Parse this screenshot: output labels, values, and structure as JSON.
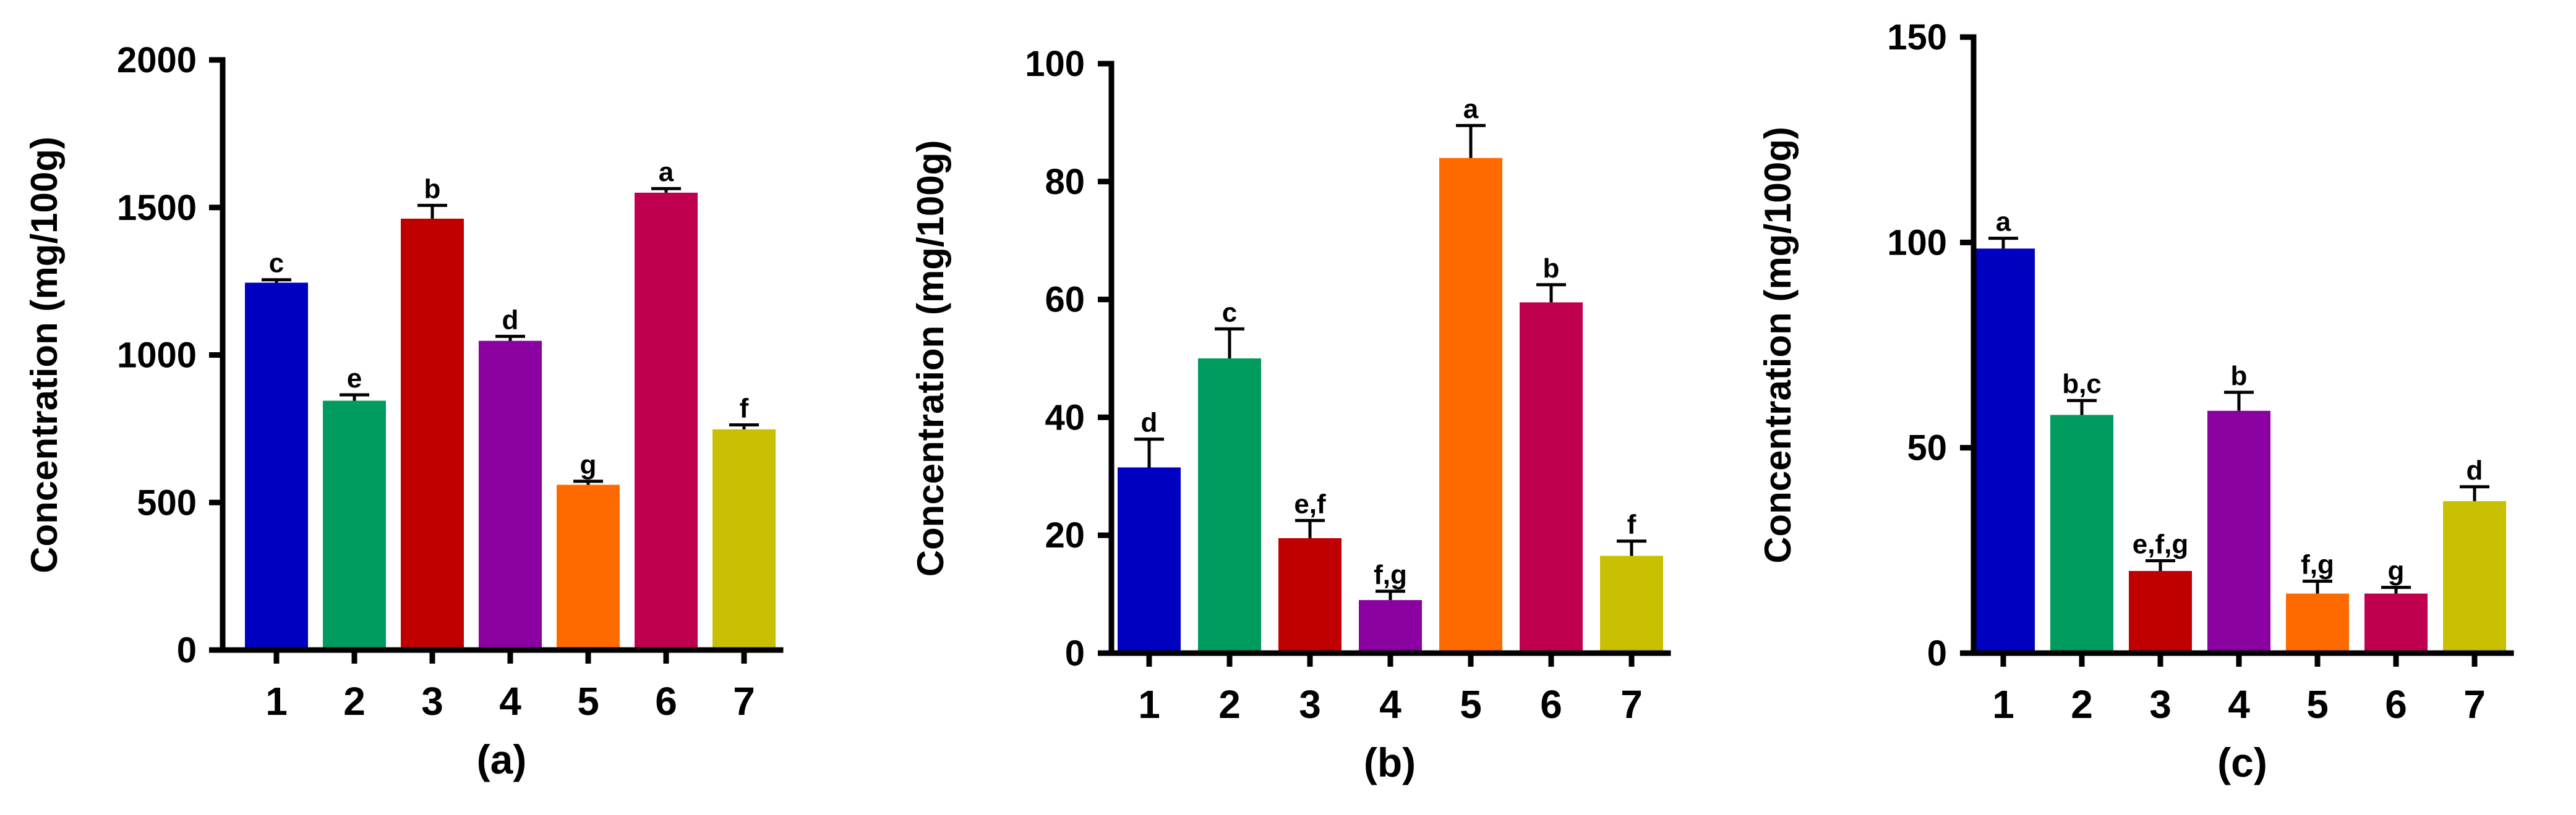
{
  "chart_data": [
    {
      "type": "bar",
      "panel_label": "(a)",
      "ylabel": "Concentration (mg/100g)",
      "ylim": [
        0,
        2000
      ],
      "yticks": [
        0,
        500,
        1000,
        1500,
        2000
      ],
      "categories": [
        "1",
        "2",
        "3",
        "4",
        "5",
        "6",
        "7"
      ],
      "values": [
        1245,
        845,
        1462,
        1048,
        560,
        1550,
        748
      ],
      "errors": [
        10,
        20,
        45,
        15,
        12,
        14,
        15
      ],
      "sig_labels": [
        "c",
        "e",
        "b",
        "d",
        "g",
        "a",
        "f"
      ],
      "colors": [
        "#0000c0",
        "#009b5e",
        "#c00000",
        "#8b00a0",
        "#ff6a00",
        "#c0004f",
        "#c8c000"
      ]
    },
    {
      "type": "bar",
      "panel_label": "(b)",
      "ylabel": "Concentration (mg/100g)",
      "ylim": [
        0,
        100
      ],
      "yticks": [
        0,
        20,
        40,
        60,
        80,
        100
      ],
      "categories": [
        "1",
        "2",
        "3",
        "4",
        "5",
        "6",
        "7"
      ],
      "values": [
        31.5,
        50,
        19.5,
        9,
        84,
        59.5,
        16.5
      ],
      "errors": [
        4.8,
        5,
        3,
        1.5,
        5.5,
        3,
        2.5
      ],
      "sig_labels": [
        "d",
        "c",
        "e,f",
        "f,g",
        "a",
        "b",
        "f"
      ],
      "colors": [
        "#0000c0",
        "#009b5e",
        "#c00000",
        "#8b00a0",
        "#ff6a00",
        "#c0004f",
        "#c8c000"
      ]
    },
    {
      "type": "bar",
      "panel_label": "(c)",
      "ylabel": "Concentration (mg/100g)",
      "ylim": [
        0,
        150
      ],
      "yticks": [
        0,
        50,
        100,
        150
      ],
      "categories": [
        "1",
        "2",
        "3",
        "4",
        "5",
        "6",
        "7"
      ],
      "values": [
        98.5,
        58,
        20,
        59,
        14.5,
        14.5,
        37
      ],
      "errors": [
        2.5,
        3.5,
        2.5,
        4.5,
        3,
        1.5,
        3.5
      ],
      "sig_labels": [
        "a",
        "b,c",
        "e,f,g",
        "b",
        "f,g",
        "g",
        "d"
      ],
      "colors": [
        "#0000c0",
        "#009b5e",
        "#c00000",
        "#8b00a0",
        "#ff6a00",
        "#c0004f",
        "#c8c000"
      ]
    }
  ]
}
